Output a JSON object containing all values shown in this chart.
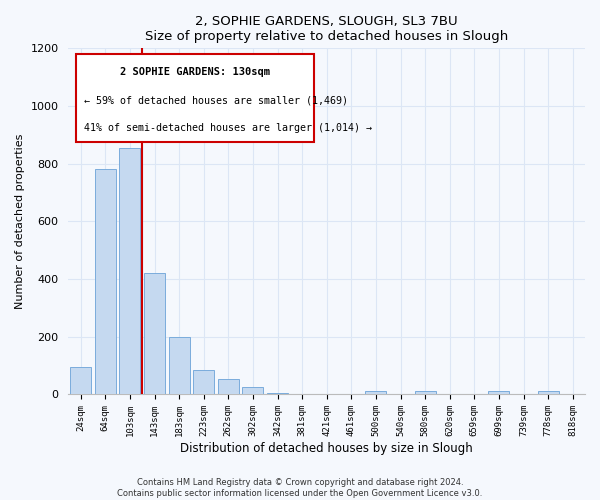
{
  "title": "2, SOPHIE GARDENS, SLOUGH, SL3 7BU",
  "subtitle": "Size of property relative to detached houses in Slough",
  "xlabel": "Distribution of detached houses by size in Slough",
  "ylabel": "Number of detached properties",
  "bar_labels": [
    "24sqm",
    "64sqm",
    "103sqm",
    "143sqm",
    "183sqm",
    "223sqm",
    "262sqm",
    "302sqm",
    "342sqm",
    "381sqm",
    "421sqm",
    "461sqm",
    "500sqm",
    "540sqm",
    "580sqm",
    "620sqm",
    "659sqm",
    "699sqm",
    "739sqm",
    "778sqm",
    "818sqm"
  ],
  "bar_values": [
    95,
    780,
    855,
    420,
    200,
    85,
    55,
    25,
    5,
    2,
    0,
    0,
    12,
    0,
    12,
    0,
    0,
    12,
    0,
    12,
    0
  ],
  "bar_color": "#c5d9f0",
  "bar_edge_color": "#7aacdc",
  "vline_color": "#cc0000",
  "annotation_title": "2 SOPHIE GARDENS: 130sqm",
  "annotation_line1": "← 59% of detached houses are smaller (1,469)",
  "annotation_line2": "41% of semi-detached houses are larger (1,014) →",
  "annotation_box_color": "#cc0000",
  "ylim": [
    0,
    1200
  ],
  "yticks": [
    0,
    200,
    400,
    600,
    800,
    1000,
    1200
  ],
  "footer_line1": "Contains HM Land Registry data © Crown copyright and database right 2024.",
  "footer_line2": "Contains public sector information licensed under the Open Government Licence v3.0.",
  "background_color": "#f5f8fd",
  "plot_background": "#f5f8fd",
  "grid_color": "#dce6f5"
}
